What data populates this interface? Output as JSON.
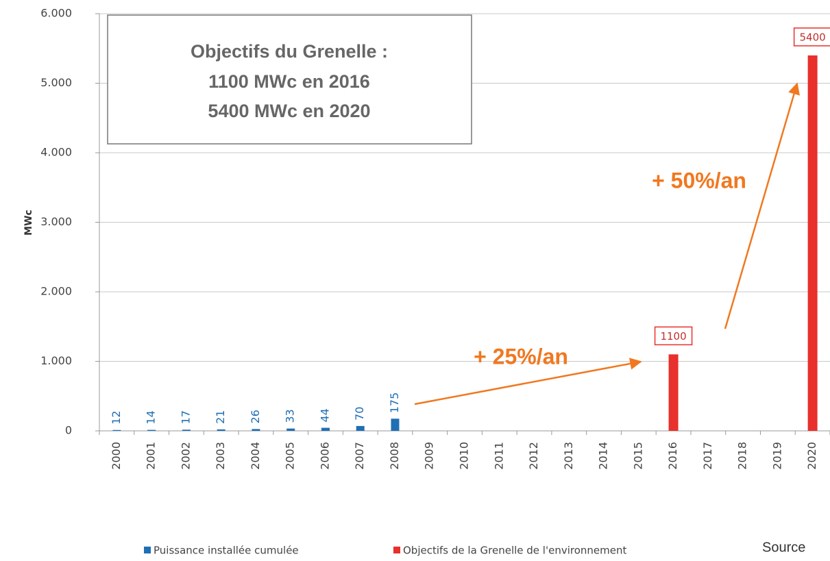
{
  "chart_data": {
    "type": "bar",
    "y_label": "MWc",
    "categories": [
      "2000",
      "2001",
      "2002",
      "2003",
      "2004",
      "2005",
      "2006",
      "2007",
      "2008",
      "2009",
      "2010",
      "2011",
      "2012",
      "2013",
      "2014",
      "2015",
      "2016",
      "2017",
      "2018",
      "2019",
      "2020"
    ],
    "series": [
      {
        "name": "Puissance installée cumulée",
        "color": "#1f6fb4",
        "values": [
          12,
          14,
          17,
          21,
          26,
          33,
          44,
          70,
          175,
          null,
          null,
          null,
          null,
          null,
          null,
          null,
          null,
          null,
          null,
          null,
          null
        ]
      },
      {
        "name": "Objectifs de la Grenelle de l'environnement",
        "color": "#e8302c",
        "values": [
          null,
          null,
          null,
          null,
          null,
          null,
          null,
          null,
          null,
          null,
          null,
          null,
          null,
          null,
          null,
          null,
          1100,
          null,
          null,
          null,
          5400
        ]
      }
    ],
    "ylim": [
      0,
      6000
    ],
    "yticks": [
      0,
      {
        "value": 1000,
        "label": "1.000"
      },
      {
        "value": 2000,
        "label": "2.000"
      },
      {
        "value": 3000,
        "label": "3.000"
      },
      {
        "value": 4000,
        "label": "4.000"
      },
      {
        "value": 5000,
        "label": "5.000"
      },
      {
        "value": 6000,
        "label": "6.000"
      }
    ],
    "grid": true,
    "box_text": [
      "Objectifs du Grenelle :",
      "1100 MWc en 2016",
      "5400 MWc en 2020"
    ],
    "annotations": [
      "+ 25%/an",
      "+ 50%/an"
    ],
    "source": "Source"
  }
}
